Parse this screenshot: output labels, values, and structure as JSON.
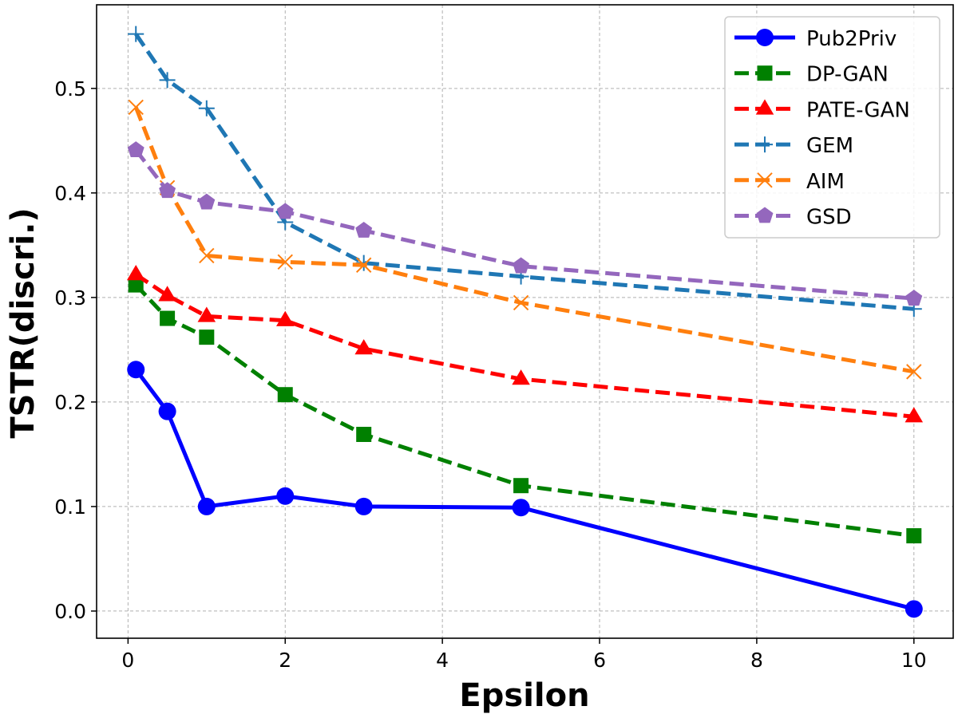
{
  "chart_data": {
    "type": "line",
    "title": "",
    "xlabel": "Epsilon",
    "ylabel": "TSTR(discri.)",
    "xlim": [
      -0.4,
      10.5
    ],
    "ylim": [
      -0.026,
      0.58
    ],
    "xticks": [
      0,
      2,
      4,
      6,
      8,
      10
    ],
    "xtick_labels": [
      "0",
      "2",
      "4",
      "6",
      "8",
      "10"
    ],
    "yticks": [
      0.0,
      0.1,
      0.2,
      0.3,
      0.4,
      0.5
    ],
    "ytick_labels": [
      "0.0",
      "0.1",
      "0.2",
      "0.3",
      "0.4",
      "0.5"
    ],
    "grid": true,
    "legend_position": "top-right",
    "x": [
      0.1,
      0.5,
      1,
      2,
      3,
      5,
      10
    ],
    "series": [
      {
        "name": "Pub2Priv",
        "color": "#0000ff",
        "linestyle": "solid",
        "marker": "circle",
        "values": [
          0.231,
          0.191,
          0.1,
          0.11,
          0.1,
          0.099,
          0.002
        ]
      },
      {
        "name": "DP-GAN",
        "color": "#008000",
        "linestyle": "dashed",
        "marker": "square",
        "values": [
          0.312,
          0.28,
          0.262,
          0.207,
          0.169,
          0.12,
          0.072
        ]
      },
      {
        "name": "PATE-GAN",
        "color": "#ff0000",
        "linestyle": "dashed",
        "marker": "triangle",
        "values": [
          0.322,
          0.302,
          0.282,
          0.278,
          0.251,
          0.222,
          0.186
        ]
      },
      {
        "name": "GEM",
        "color": "#1f77b4",
        "linestyle": "dashed",
        "marker": "plus",
        "values": [
          0.552,
          0.508,
          0.481,
          0.372,
          0.333,
          0.32,
          0.289
        ]
      },
      {
        "name": "AIM",
        "color": "#ff7f0e",
        "linestyle": "dashed",
        "marker": "x",
        "values": [
          0.482,
          0.405,
          0.34,
          0.334,
          0.331,
          0.295,
          0.229
        ]
      },
      {
        "name": "GSD",
        "color": "#9467bd",
        "linestyle": "dashed",
        "marker": "pentagon",
        "values": [
          0.441,
          0.402,
          0.391,
          0.382,
          0.364,
          0.33,
          0.299
        ]
      }
    ]
  }
}
